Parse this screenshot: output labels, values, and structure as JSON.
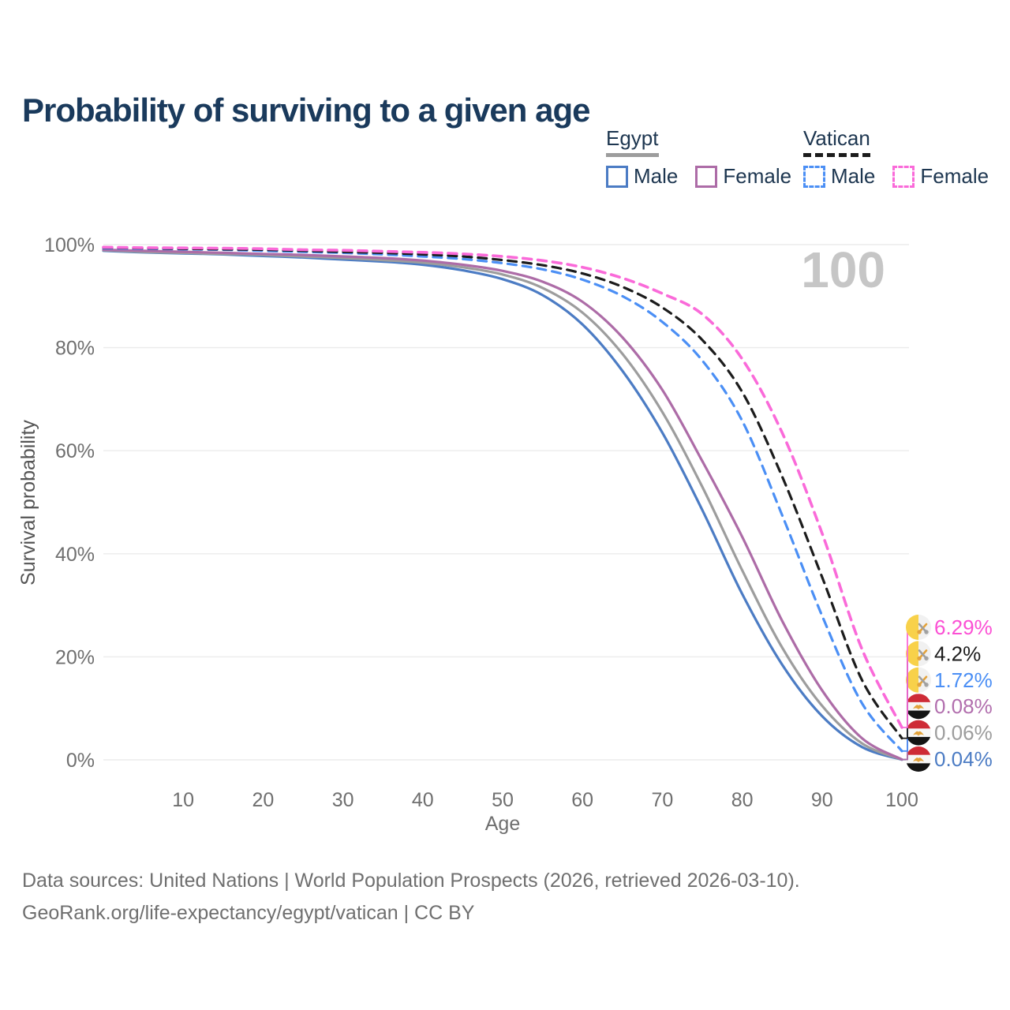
{
  "header": {
    "title": "Probability of surviving to a given age"
  },
  "legend": {
    "groups": [
      {
        "label": "Egypt",
        "line_style": "solid",
        "underline_color": "#9d9d9d",
        "items": [
          {
            "label": "Male",
            "color": "#4c7cc4"
          },
          {
            "label": "Female",
            "color": "#ad6ca7"
          }
        ]
      },
      {
        "label": "Vatican",
        "line_style": "dashed",
        "underline_color": "#1c1c1c",
        "items": [
          {
            "label": "Male",
            "color": "#4b8ff5"
          },
          {
            "label": "Female",
            "color": "#fa6ad9"
          }
        ]
      }
    ]
  },
  "chart_data": {
    "type": "line",
    "title": "Probability of surviving to a given age",
    "xlabel": "Age",
    "ylabel": "Survival probability",
    "xlim": [
      0,
      100
    ],
    "ylim": [
      0,
      100
    ],
    "x_ticks": [
      10,
      20,
      30,
      40,
      50,
      60,
      70,
      80,
      90,
      100
    ],
    "x_tick_labels": [
      "10",
      "20",
      "30",
      "40",
      "50",
      "60",
      "70",
      "80",
      "90",
      "100"
    ],
    "y_ticks": [
      0,
      20,
      40,
      60,
      80,
      100
    ],
    "y_tick_labels": [
      "0%",
      "20%",
      "40%",
      "60%",
      "80%",
      "100%"
    ],
    "grid": "horizontal-only",
    "legend_position": "top-right",
    "watermark": "100",
    "x": [
      0,
      5,
      10,
      15,
      20,
      25,
      30,
      35,
      40,
      45,
      50,
      55,
      60,
      65,
      70,
      75,
      80,
      85,
      90,
      95,
      100
    ],
    "series": [
      {
        "name": "Egypt Male",
        "country": "egypt",
        "sex": "male",
        "style": "solid",
        "color": "#4c7cc4",
        "end_label": "0.04%",
        "end_label_color": "#4c7cc4",
        "values": [
          98.8,
          98.5,
          98.3,
          98.1,
          97.8,
          97.5,
          97.1,
          96.7,
          96.1,
          95.0,
          93.3,
          90.2,
          84.5,
          75.5,
          63.5,
          48.5,
          32.2,
          18.5,
          8.5,
          2.5,
          0.04
        ]
      },
      {
        "name": "Egypt Both sexes",
        "country": "egypt",
        "sex": "both",
        "style": "solid",
        "color": "#9d9d9d",
        "end_label": "0.06%",
        "end_label_color": "#9d9d9d",
        "values": [
          98.9,
          98.6,
          98.4,
          98.2,
          98.0,
          97.7,
          97.4,
          97.0,
          96.5,
          95.6,
          94.2,
          91.6,
          86.8,
          78.8,
          67.5,
          53.0,
          36.8,
          21.8,
          10.5,
          3.2,
          0.06
        ]
      },
      {
        "name": "Egypt Female",
        "country": "egypt",
        "sex": "female",
        "style": "solid",
        "color": "#ad6ca7",
        "end_label": "0.08%",
        "end_label_color": "#b26fae",
        "values": [
          99.0,
          98.8,
          98.6,
          98.4,
          98.2,
          98.0,
          97.7,
          97.4,
          96.9,
          96.1,
          94.9,
          92.8,
          88.9,
          82.0,
          71.8,
          58.0,
          43.3,
          27.0,
          13.5,
          4.2,
          0.08
        ]
      },
      {
        "name": "Vatican Male",
        "country": "vatican",
        "sex": "male",
        "style": "dashed",
        "color": "#4b8ff5",
        "end_label": "1.72%",
        "end_label_color": "#4b8ff5",
        "values": [
          99.3,
          99.2,
          99.1,
          99.0,
          98.8,
          98.6,
          98.4,
          98.1,
          97.7,
          97.2,
          96.4,
          95.2,
          93.2,
          90.0,
          85.0,
          77.5,
          65.8,
          47.5,
          28.0,
          11.0,
          1.72
        ]
      },
      {
        "name": "Vatican Both sexes",
        "country": "vatican",
        "sex": "both",
        "style": "dashed",
        "color": "#1c1c1c",
        "end_label": "4.2%",
        "end_label_color": "#1c1c1c",
        "values": [
          99.4,
          99.3,
          99.2,
          99.1,
          99.0,
          98.8,
          98.6,
          98.4,
          98.1,
          97.7,
          97.0,
          96.0,
          94.4,
          91.8,
          87.8,
          81.5,
          71.4,
          55.0,
          35.5,
          15.5,
          4.2
        ]
      },
      {
        "name": "Vatican Female",
        "country": "vatican",
        "sex": "female",
        "style": "dashed",
        "color": "#fa6ad9",
        "end_label": "6.29%",
        "end_label_color": "#fb50d4",
        "values": [
          99.5,
          99.4,
          99.35,
          99.3,
          99.2,
          99.0,
          98.9,
          98.7,
          98.5,
          98.2,
          97.7,
          96.9,
          95.6,
          93.5,
          90.5,
          86.5,
          77.8,
          63.5,
          44.0,
          21.5,
          6.29
        ]
      }
    ],
    "colors": {
      "grid": "#ebebeb",
      "tick_text": "#6f6f6f",
      "axis_title": "#555555",
      "watermark": "#c6c6c6",
      "title": "#1a3a5c",
      "legend_text": "#1d3650",
      "egypt_flag_red": "#ce2b36",
      "egypt_flag_black": "#141414",
      "egypt_flag_gold": "#e2a23b",
      "vatican_flag_yellow": "#f8d14a",
      "vatican_flag_white": "#f1f1f1"
    }
  },
  "footer": {
    "line1": "Data sources: United Nations | World Population Prospects (2026, retrieved 2026-03-10).",
    "line2": "GeoRank.org/life-expectancy/egypt/vatican | CC BY"
  }
}
